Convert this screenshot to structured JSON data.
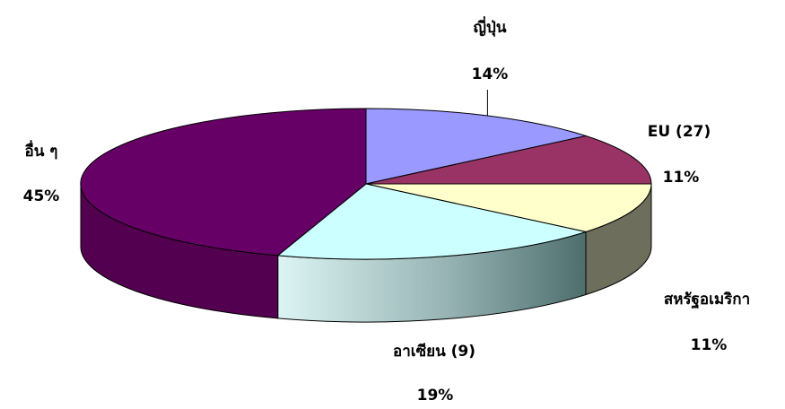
{
  "chart_data": {
    "type": "pie",
    "title": "",
    "three_d": true,
    "slices": [
      {
        "label": "ญี่ปุ่น",
        "percent_label": "14%",
        "value": 14,
        "color": "#9999ff"
      },
      {
        "label": "EU (27)",
        "percent_label": "11%",
        "value": 11,
        "color": "#993366"
      },
      {
        "label": "สหรัฐอเมริกา",
        "percent_label": "11%",
        "value": 11,
        "color": "#ffffcc"
      },
      {
        "label": "อาเซียน (9)",
        "percent_label": "19%",
        "value": 19,
        "color": "#ccffff"
      },
      {
        "label": "อื่น ๆ",
        "percent_label": "45%",
        "value": 45,
        "color": "#660066"
      }
    ]
  }
}
